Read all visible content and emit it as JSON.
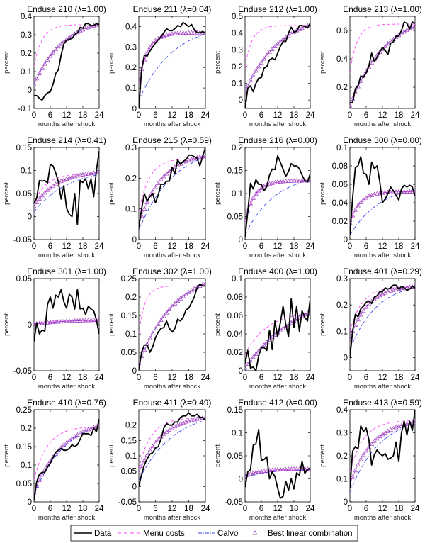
{
  "chart_data": {
    "type": "line",
    "layout": "4x4 grid of small multiples",
    "xlabel": "months after shock",
    "ylabel": "percent",
    "x": [
      0,
      1,
      2,
      3,
      4,
      5,
      6,
      7,
      8,
      9,
      10,
      11,
      12,
      13,
      14,
      15,
      16,
      17,
      18,
      19,
      20,
      21,
      22,
      23,
      24
    ],
    "xticks": [
      0,
      6,
      12,
      18,
      24
    ],
    "xlim": [
      0,
      24
    ],
    "legend": {
      "placement": "bottom-center",
      "entries": [
        {
          "name": "Data",
          "style": "solid",
          "color": "#000000"
        },
        {
          "name": "Menu costs",
          "style": "dashed",
          "color": "#ff33ff"
        },
        {
          "name": "Calvo",
          "style": "dash-dot",
          "color": "#3344ee"
        },
        {
          "name": "Best linear combination",
          "style": "triangle-markers",
          "color": "#a040c0"
        }
      ]
    },
    "colors": {
      "data": "#000000",
      "menu": "#ff44ff",
      "calvo": "#3344ee",
      "best": "#a040c0"
    },
    "panels": [
      {
        "title": "Enduse 210 (λ=1.00)",
        "ylim": [
          -0.1,
          0.4
        ],
        "yticks": [
          -0.1,
          0,
          0.1,
          0.2,
          0.3,
          0.4
        ],
        "yticklabels": [
          "-0.1",
          "0",
          "0.1",
          "0.2",
          "0.3",
          "0.4"
        ],
        "data": [
          -0.03,
          -0.03,
          -0.045,
          -0.055,
          -0.03,
          -0.015,
          -0.01,
          0.03,
          0.09,
          0.11,
          0.19,
          0.25,
          0.27,
          0.275,
          0.28,
          0.3,
          0.31,
          0.34,
          0.335,
          0.36,
          0.36,
          0.35,
          0.35,
          0.36,
          0.355
        ],
        "menu": {
          "start": 0.13,
          "end": 0.355,
          "rate": 0.33
        },
        "calvo": {
          "start": 0.03,
          "end": 0.4,
          "rate": 0.09
        },
        "best": {
          "start": 0.03,
          "end": 0.4,
          "rate": 0.09
        }
      },
      {
        "title": "Enduse 211 (λ=0.04)",
        "ylim": [
          0,
          0.45
        ],
        "yticks": [
          0,
          0.1,
          0.2,
          0.3,
          0.4
        ],
        "yticklabels": [
          "0",
          "0.1",
          "0.2",
          "0.3",
          "0.4"
        ],
        "data": [
          0.0,
          0.19,
          0.26,
          0.255,
          0.28,
          0.3,
          0.32,
          0.335,
          0.35,
          0.37,
          0.39,
          0.38,
          0.38,
          0.39,
          0.405,
          0.4,
          0.42,
          0.41,
          0.4,
          0.41,
          0.385,
          0.37,
          0.37,
          0.375,
          0.37
        ],
        "menu": {
          "start": 0.12,
          "end": 0.37,
          "rate": 0.3
        },
        "calvo": {
          "start": 0.04,
          "end": 0.42,
          "rate": 0.08
        },
        "best": {
          "start": 0.13,
          "end": 0.37,
          "rate": 0.3
        }
      },
      {
        "title": "Enduse 212 (λ=1.00)",
        "ylim": [
          -0.05,
          0.5
        ],
        "yticks": [
          0,
          0.1,
          0.2,
          0.3,
          0.4,
          0.5
        ],
        "yticklabels": [
          "0",
          "0.1",
          "0.2",
          "0.3",
          "0.4",
          "0.5"
        ],
        "data": [
          -0.05,
          0.07,
          0.085,
          0.05,
          0.1,
          0.13,
          0.135,
          0.19,
          0.2,
          0.24,
          0.25,
          0.24,
          0.28,
          0.32,
          0.35,
          0.35,
          0.4,
          0.435,
          0.405,
          0.41,
          0.445,
          0.445,
          0.44,
          0.43,
          0.46
        ],
        "menu": {
          "start": 0.2,
          "end": 0.445,
          "rate": 0.38
        },
        "calvo": {
          "start": 0.05,
          "end": 0.53,
          "rate": 0.075
        },
        "best": {
          "start": 0.05,
          "end": 0.53,
          "rate": 0.075
        }
      },
      {
        "title": "Enduse 213 (λ=1.00)",
        "ylim": [
          0.05,
          0.7
        ],
        "yticks": [
          0.2,
          0.4,
          0.6
        ],
        "yticklabels": [
          "0.2",
          "0.4",
          "0.6"
        ],
        "data": [
          0.09,
          0.09,
          0.19,
          0.21,
          0.28,
          0.27,
          0.3,
          0.35,
          0.44,
          0.38,
          0.41,
          0.45,
          0.48,
          0.46,
          0.43,
          0.51,
          0.52,
          0.56,
          0.56,
          0.6,
          0.66,
          0.65,
          0.61,
          0.66,
          0.65
        ],
        "menu": {
          "start": 0.3,
          "end": 0.645,
          "rate": 0.38
        },
        "calvo": {
          "start": 0.07,
          "end": 0.74,
          "rate": 0.075
        },
        "best": {
          "start": 0.07,
          "end": 0.74,
          "rate": 0.075
        }
      },
      {
        "title": "Enduse 214 (λ=0.41)",
        "ylim": [
          -0.05,
          0.15
        ],
        "yticks": [
          -0.05,
          0,
          0.05,
          0.1,
          0.15
        ],
        "yticklabels": [
          "-0.05",
          "0",
          "0.05",
          "0.1",
          "0.15"
        ],
        "data": [
          0.03,
          0.04,
          0.078,
          0.077,
          0.078,
          0.073,
          0.113,
          0.11,
          0.095,
          0.075,
          0.038,
          0.067,
          0.018,
          0.005,
          0.0,
          0.05,
          -0.017,
          0.078,
          0.074,
          0.082,
          0.06,
          0.082,
          0.043,
          0.1,
          0.142
        ],
        "menu": {
          "start": 0.03,
          "end": 0.093,
          "rate": 0.22
        },
        "calvo": {
          "start": 0.01,
          "end": 0.105,
          "rate": 0.08
        },
        "best": {
          "start": 0.022,
          "end": 0.1,
          "rate": 0.12
        }
      },
      {
        "title": "Enduse 215 (λ=0.59)",
        "ylim": [
          0,
          0.3
        ],
        "yticks": [
          0,
          0.1,
          0.2,
          0.3
        ],
        "yticklabels": [
          "0",
          "0.1",
          "0.2",
          "0.3"
        ],
        "data": [
          0.04,
          0.1,
          0.15,
          0.125,
          0.14,
          0.15,
          0.12,
          0.145,
          0.18,
          0.18,
          0.19,
          0.19,
          0.235,
          0.215,
          0.26,
          0.245,
          0.255,
          0.26,
          0.275,
          0.275,
          0.27,
          0.265,
          0.24,
          0.27,
          0.3
        ],
        "menu": {
          "start": 0.09,
          "end": 0.265,
          "rate": 0.26
        },
        "calvo": {
          "start": 0.03,
          "end": 0.31,
          "rate": 0.08
        },
        "best": {
          "start": 0.05,
          "end": 0.285,
          "rate": 0.12
        }
      },
      {
        "title": "Enduse 216 (λ=0.00)",
        "ylim": [
          0,
          0.2
        ],
        "yticks": [
          0,
          0.05,
          0.1,
          0.15,
          0.2
        ],
        "yticklabels": [
          "0",
          "0.05",
          "0.1",
          "0.15",
          "0.2"
        ],
        "data": [
          0.005,
          0.06,
          0.122,
          0.11,
          0.13,
          0.12,
          0.12,
          0.106,
          0.115,
          0.14,
          0.153,
          0.152,
          0.182,
          0.168,
          0.153,
          0.137,
          0.148,
          0.165,
          0.16,
          0.16,
          0.154,
          0.14,
          0.128,
          0.125,
          0.143
        ],
        "menu": {
          "start": 0.04,
          "end": 0.128,
          "rate": 0.27
        },
        "calvo": {
          "start": 0.01,
          "end": 0.145,
          "rate": 0.09
        },
        "best": {
          "start": 0.043,
          "end": 0.128,
          "rate": 0.27
        }
      },
      {
        "title": "Enduse 300 (λ=0.00)",
        "ylim": [
          0,
          0.1
        ],
        "yticks": [
          0,
          0.02,
          0.04,
          0.06,
          0.08,
          0.1
        ],
        "yticklabels": [
          "0",
          "0.02",
          "0.04",
          "0.06",
          "0.08",
          "0.1"
        ],
        "data": [
          0.005,
          0.045,
          0.078,
          0.08,
          0.09,
          0.072,
          0.071,
          0.06,
          0.084,
          0.077,
          0.08,
          0.063,
          0.04,
          0.044,
          0.05,
          0.057,
          0.053,
          0.048,
          0.043,
          0.055,
          0.059,
          0.057,
          0.059,
          0.057,
          0.047
        ],
        "menu": {
          "start": 0.018,
          "end": 0.052,
          "rate": 0.27
        },
        "calvo": {
          "start": 0.005,
          "end": 0.062,
          "rate": 0.085
        },
        "best": {
          "start": 0.018,
          "end": 0.052,
          "rate": 0.27
        }
      },
      {
        "title": "Enduse 301 (λ=1.00)",
        "ylim": [
          -0.05,
          0.05
        ],
        "yticks": [
          -0.05,
          0,
          0.05
        ],
        "yticklabels": [
          "-0.05",
          "0",
          "0.05"
        ],
        "data": [
          -0.018,
          0.002,
          -0.01,
          -0.006,
          -0.007,
          0.022,
          0.03,
          0.018,
          0.032,
          0.03,
          0.038,
          0.025,
          0.018,
          0.033,
          0.03,
          0.017,
          0.038,
          0.017,
          0.018,
          0.011,
          0.02,
          0.017,
          0.015,
          0.005,
          -0.01
        ],
        "menu": {
          "start": 0.001,
          "end": 0.004,
          "rate": 0.3
        },
        "calvo": {
          "start": 0.0005,
          "end": 0.006,
          "rate": 0.07
        },
        "best": {
          "start": 0.0005,
          "end": 0.006,
          "rate": 0.07
        }
      },
      {
        "title": "Enduse 302 (λ=1.00)",
        "ylim": [
          0,
          0.25
        ],
        "yticks": [
          0,
          0.05,
          0.1,
          0.15,
          0.2,
          0.25
        ],
        "yticklabels": [
          "0",
          "0.05",
          "0.1",
          "0.15",
          "0.2",
          "0.25"
        ],
        "data": [
          0.003,
          0.05,
          0.07,
          0.07,
          0.05,
          0.065,
          0.09,
          0.105,
          0.115,
          0.117,
          0.135,
          0.115,
          0.105,
          0.115,
          0.14,
          0.135,
          0.145,
          0.165,
          0.17,
          0.185,
          0.2,
          0.225,
          0.235,
          0.23,
          0.23
        ],
        "menu": {
          "start": 0.1,
          "end": 0.23,
          "rate": 0.45
        },
        "calvo": {
          "start": 0.02,
          "end": 0.28,
          "rate": 0.075
        },
        "best": {
          "start": 0.02,
          "end": 0.28,
          "rate": 0.075
        }
      },
      {
        "title": "Enduse 400 (λ=1.00)",
        "ylim": [
          0,
          0.1
        ],
        "yticks": [
          0,
          0.02,
          0.04,
          0.06,
          0.08,
          0.1
        ],
        "yticklabels": [
          "0",
          "0.02",
          "0.04",
          "0.06",
          "0.08",
          "0.1"
        ],
        "data": [
          0.008,
          0.022,
          0.003,
          0.004,
          0.0,
          0.016,
          0.025,
          0.025,
          0.022,
          0.044,
          0.023,
          0.054,
          0.037,
          0.052,
          0.07,
          0.05,
          0.037,
          0.078,
          0.047,
          0.07,
          0.043,
          0.065,
          0.058,
          0.054,
          0.078
        ],
        "menu": {
          "start": 0.018,
          "end": 0.065,
          "rate": 0.12
        },
        "calvo": {
          "start": 0.003,
          "end": 0.095,
          "rate": 0.045
        },
        "best": {
          "start": 0.003,
          "end": 0.095,
          "rate": 0.045
        }
      },
      {
        "title": "Enduse 401 (λ=0.29)",
        "ylim": [
          -0.05,
          0.3
        ],
        "yticks": [
          0,
          0.1,
          0.2,
          0.3
        ],
        "yticklabels": [
          "0",
          "0.1",
          "0.2",
          "0.3"
        ],
        "data": [
          0.0,
          0.1,
          0.165,
          0.155,
          0.185,
          0.195,
          0.21,
          0.215,
          0.205,
          0.23,
          0.235,
          0.25,
          0.25,
          0.265,
          0.26,
          0.265,
          0.275,
          0.275,
          0.26,
          0.27,
          0.265,
          0.255,
          0.26,
          0.27,
          0.265
        ],
        "menu": {
          "start": 0.1,
          "end": 0.27,
          "rate": 0.22
        },
        "calvo": {
          "start": 0.03,
          "end": 0.29,
          "rate": 0.1
        },
        "best": {
          "start": 0.07,
          "end": 0.275,
          "rate": 0.15
        }
      },
      {
        "title": "Enduse 410 (λ=0.76)",
        "ylim": [
          0,
          0.25
        ],
        "yticks": [
          0,
          0.05,
          0.1,
          0.15,
          0.2,
          0.25
        ],
        "yticklabels": [
          "0",
          "0.05",
          "0.1",
          "0.15",
          "0.2",
          "0.25"
        ],
        "data": [
          0.005,
          0.055,
          0.075,
          0.08,
          0.08,
          0.095,
          0.105,
          0.12,
          0.135,
          0.14,
          0.145,
          0.14,
          0.14,
          0.145,
          0.155,
          0.15,
          0.155,
          0.17,
          0.185,
          0.185,
          0.185,
          0.18,
          0.2,
          0.19,
          0.225
        ],
        "menu": {
          "start": 0.06,
          "end": 0.205,
          "rate": 0.2
        },
        "calvo": {
          "start": 0.02,
          "end": 0.24,
          "rate": 0.08
        },
        "best": {
          "start": 0.025,
          "end": 0.23,
          "rate": 0.09
        }
      },
      {
        "title": "Enduse 411 (λ=0.49)",
        "ylim": [
          -0.05,
          0.25
        ],
        "yticks": [
          -0.05,
          0,
          0.05,
          0.1,
          0.15,
          0.2
        ],
        "yticklabels": [
          "-0.05",
          "0",
          "0.05",
          "0.1",
          "0.15",
          "0.2"
        ],
        "data": [
          0.0,
          0.04,
          0.07,
          0.09,
          0.105,
          0.11,
          0.125,
          0.13,
          0.155,
          0.19,
          0.205,
          0.2,
          0.2,
          0.21,
          0.21,
          0.225,
          0.23,
          0.23,
          0.24,
          0.23,
          0.23,
          0.235,
          0.225,
          0.225,
          0.215
        ],
        "menu": {
          "start": 0.06,
          "end": 0.225,
          "rate": 0.22
        },
        "calvo": {
          "start": 0.02,
          "end": 0.25,
          "rate": 0.08
        },
        "best": {
          "start": 0.045,
          "end": 0.235,
          "rate": 0.12
        }
      },
      {
        "title": "Enduse 412 (λ=0.00)",
        "ylim": [
          -0.05,
          0.15
        ],
        "yticks": [
          -0.05,
          0,
          0.05,
          0.1,
          0.15
        ],
        "yticklabels": [
          "-0.05",
          "0",
          "0.05",
          "0.1",
          "0.15"
        ],
        "data": [
          -0.018,
          0.015,
          0.02,
          0.073,
          0.076,
          0.107,
          0.04,
          0.042,
          0.048,
          0.0,
          0.015,
          0.005,
          -0.02,
          -0.042,
          -0.038,
          -0.005,
          -0.025,
          0.0,
          -0.022,
          0.013,
          0.008,
          0.038,
          0.012,
          0.02,
          0.024
        ],
        "menu": {
          "start": 0.005,
          "end": 0.019,
          "rate": 0.3
        },
        "calvo": {
          "start": 0.003,
          "end": 0.022,
          "rate": 0.1
        },
        "best": {
          "start": 0.007,
          "end": 0.022,
          "rate": 0.15
        }
      },
      {
        "title": "Enduse 413 (λ=0.59)",
        "ylim": [
          0,
          0.4
        ],
        "yticks": [
          0,
          0.1,
          0.2,
          0.3,
          0.4
        ],
        "yticklabels": [
          "0",
          "0.1",
          "0.2",
          "0.3",
          "0.4"
        ],
        "data": [
          0.06,
          0.22,
          0.24,
          0.23,
          0.33,
          0.305,
          0.32,
          0.27,
          0.16,
          0.205,
          0.225,
          0.21,
          0.2,
          0.21,
          0.185,
          0.19,
          0.2,
          0.26,
          0.175,
          0.3,
          0.35,
          0.29,
          0.35,
          0.31,
          0.4
        ],
        "menu": {
          "start": 0.13,
          "end": 0.355,
          "rate": 0.2
        },
        "calvo": {
          "start": 0.04,
          "end": 0.38,
          "rate": 0.09
        },
        "best": {
          "start": 0.075,
          "end": 0.36,
          "rate": 0.12
        }
      }
    ]
  }
}
